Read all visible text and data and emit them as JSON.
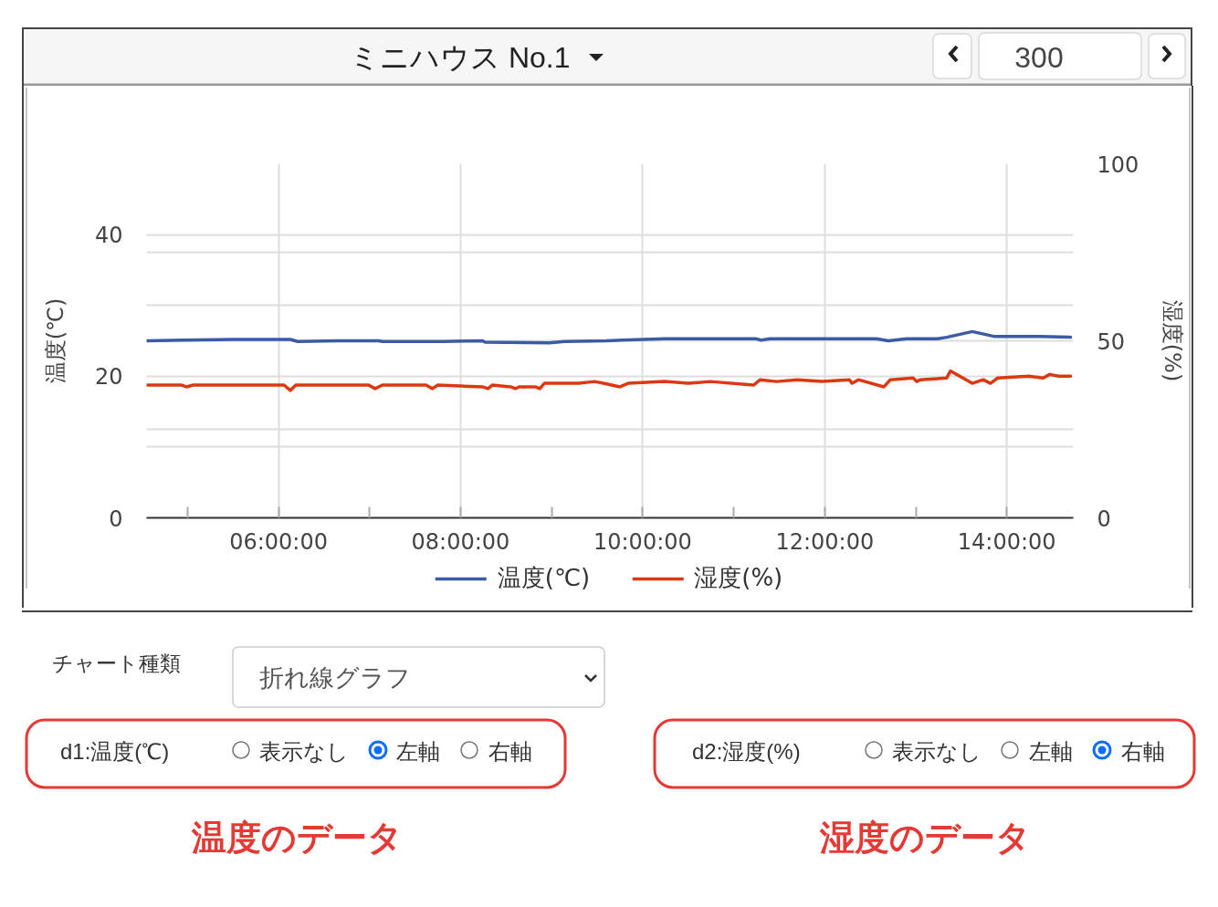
{
  "chart_data": {
    "type": "line",
    "title": "ミニハウス No.1",
    "ylabel": "温度(℃)",
    "y2label": "湿度(%)",
    "xlim": [
      4.55,
      14.73
    ],
    "xticks": [
      {
        "value": 5,
        "label": null
      },
      {
        "value": 6,
        "label": "06:00:00"
      },
      {
        "value": 7,
        "label": null
      },
      {
        "value": 8,
        "label": "08:00:00"
      },
      {
        "value": 9,
        "label": null
      },
      {
        "value": 10,
        "label": "10:00:00"
      },
      {
        "value": 11,
        "label": null
      },
      {
        "value": 12,
        "label": "12:00:00"
      },
      {
        "value": 13,
        "label": null
      },
      {
        "value": 14,
        "label": "14:00:00"
      }
    ],
    "ylim": [
      0,
      50
    ],
    "yticks": [
      0,
      {
        "value": 10,
        "label": null
      },
      20,
      {
        "value": 30,
        "label": null
      },
      40
    ],
    "y2lim": [
      0,
      100
    ],
    "y2ticks": [
      0,
      {
        "value": 25,
        "label": null
      },
      50,
      {
        "value": 75,
        "label": null
      },
      100
    ],
    "grid": true,
    "legend": "bottom",
    "line_style": "solid",
    "series": [
      {
        "name": "温度(℃)",
        "color": "#3b5ba5",
        "axis": "y",
        "x": [
          4.56,
          4.96,
          5.63,
          6.13,
          6.21,
          6.64,
          7.1,
          7.14,
          7.8,
          8.24,
          8.27,
          8.97,
          9.14,
          9.6,
          9.77,
          10.24,
          11.24,
          11.3,
          11.4,
          12.57,
          12.7,
          12.9,
          13.24,
          13.34,
          13.62,
          13.87,
          14.37,
          14.7
        ],
        "values": [
          25.0,
          25.1,
          25.2,
          25.2,
          24.9,
          25.0,
          25.0,
          24.9,
          24.9,
          25.0,
          24.8,
          24.7,
          24.9,
          25.0,
          25.1,
          25.3,
          25.3,
          25.1,
          25.3,
          25.3,
          25.0,
          25.3,
          25.3,
          25.5,
          26.3,
          25.6,
          25.6,
          25.5
        ]
      },
      {
        "name": "湿度(%)",
        "color": "#dc3912",
        "axis": "y2",
        "x": [
          4.56,
          4.93,
          4.99,
          5.06,
          6.06,
          6.13,
          6.19,
          6.99,
          7.06,
          7.14,
          7.62,
          7.69,
          7.75,
          8.24,
          8.3,
          8.35,
          8.55,
          8.6,
          8.65,
          8.82,
          8.87,
          8.92,
          9.14,
          9.3,
          9.47,
          9.57,
          9.75,
          9.84,
          10.24,
          10.5,
          10.74,
          11.22,
          11.29,
          11.47,
          11.7,
          11.97,
          12.27,
          12.3,
          12.37,
          12.65,
          12.72,
          12.97,
          13.01,
          13.05,
          13.34,
          13.38,
          13.62,
          13.74,
          13.82,
          13.9,
          14.24,
          14.4,
          14.47,
          14.57,
          14.7
        ],
        "values": [
          37.5,
          37.5,
          37.0,
          37.5,
          37.5,
          36.0,
          37.5,
          37.5,
          36.5,
          37.5,
          37.5,
          36.5,
          37.5,
          37.0,
          36.5,
          37.5,
          37.0,
          36.5,
          37.0,
          37.0,
          36.5,
          38.0,
          38.0,
          38.0,
          38.5,
          38.0,
          37.0,
          38.0,
          38.5,
          38.0,
          38.5,
          37.5,
          39.0,
          38.5,
          39.0,
          38.5,
          39.0,
          38.0,
          39.0,
          37.0,
          39.0,
          39.5,
          38.5,
          39.0,
          39.5,
          41.5,
          38.0,
          39.0,
          38.0,
          39.5,
          40.0,
          39.5,
          40.5,
          40.0,
          40.0
        ]
      }
    ],
    "annotations": [
      "300",
      "チャート種類",
      "折れ線グラフ",
      "d1:温度(℃)",
      "表示なし",
      "左軸",
      "右軸",
      "d2:湿度(%)",
      "表示なし",
      "左軸",
      "右軸",
      "温度のデータ",
      "湿度のデータ"
    ]
  }
}
